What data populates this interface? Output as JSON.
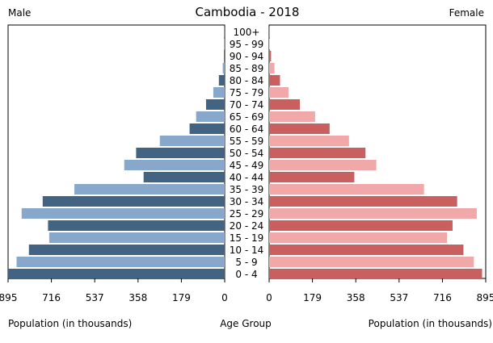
{
  "chart_data": {
    "type": "bar",
    "title": "Cambodia - 2018",
    "left_label": "Male",
    "right_label": "Female",
    "xlabel_left": "Population (in thousands)",
    "xlabel_center": "Age Group",
    "xlabel_right": "Population (in thousands)",
    "xlim": [
      0,
      895
    ],
    "ticks_left": [
      "895",
      "716",
      "537",
      "358",
      "179",
      "0"
    ],
    "ticks_right": [
      "0",
      "179",
      "358",
      "537",
      "716",
      "895"
    ],
    "categories": [
      "100+",
      "95 - 99",
      "90 - 94",
      "85 - 89",
      "80 - 84",
      "75 - 79",
      "70 - 74",
      "65 - 69",
      "60 - 64",
      "55 - 59",
      "50 - 54",
      "45 - 49",
      "40 - 44",
      "35 - 39",
      "30 - 34",
      "25 - 29",
      "20 - 24",
      "15 - 19",
      "10 - 14",
      "5 - 9",
      "0 - 4"
    ],
    "series": [
      {
        "name": "Male",
        "values": [
          1,
          1,
          3,
          8,
          24,
          47,
          77,
          118,
          145,
          268,
          366,
          415,
          335,
          621,
          752,
          839,
          730,
          725,
          809,
          860,
          895
        ]
      },
      {
        "name": "Female",
        "values": [
          1,
          2,
          8,
          22,
          45,
          80,
          127,
          190,
          250,
          330,
          398,
          443,
          352,
          640,
          777,
          858,
          758,
          735,
          803,
          846,
          880
        ]
      }
    ],
    "colors": {
      "male_dark": "#436383",
      "male_light": "#88a8cb",
      "female_dark": "#c9605f",
      "female_light": "#f0a9a8"
    }
  }
}
